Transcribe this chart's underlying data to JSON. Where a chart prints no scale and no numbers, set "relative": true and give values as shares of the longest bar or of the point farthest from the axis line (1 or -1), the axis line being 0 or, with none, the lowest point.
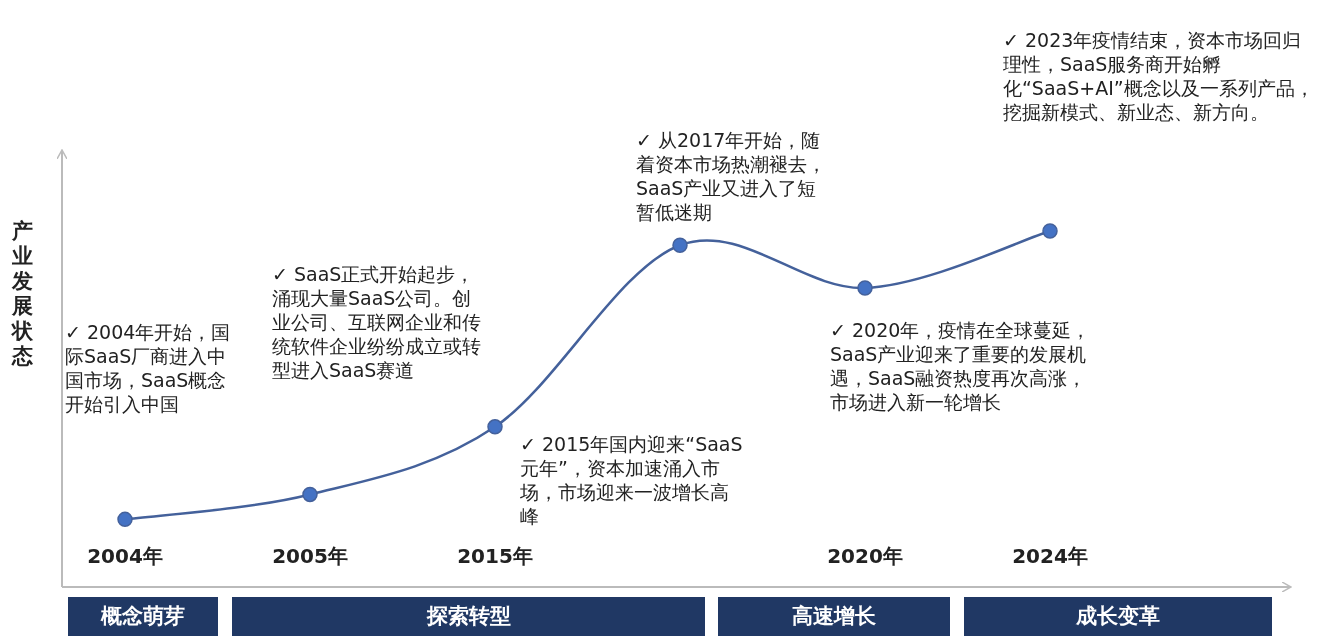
{
  "chart_data": {
    "type": "line",
    "relative": true,
    "ylabel": "产业发展状态",
    "categories": [
      "2004年",
      "2005年",
      "2015年",
      null,
      "2020年",
      "2024年"
    ],
    "series": [
      {
        "color": "#44619b",
        "values": [
          0.19,
          0.26,
          0.45,
          0.96,
          0.84,
          1
        ]
      }
    ],
    "marker": "circle",
    "line_style": "solid",
    "annotations": [
      "✓ 2004年开始，国际SaaS厂商进入中国市场，SaaS概念开始引入中国",
      "✓ SaaS正式开始起步，涌现大量SaaS公司。创业公司、互联网企业和传统软件企业纷纷成立或转型进入SaaS赛道",
      "✓ 2015年国内迎来“SaaS元年”，资本加速涌入市场，市场迎来一波增长高峰",
      "✓ 从2017年开始，随着资本市场热潮褪去，SaaS产业又进入了短暂低迷期",
      "✓ 2020年，疫情在全球蔓延，SaaS产业迎来了重要的发展机遇，SaaS融资热度再次高涨，市场进入新一轮增长",
      "✓ 2023年疫情结束，资本市场回归理性，SaaS服务商开始孵化“SaaS+AI”概念以及一系列产品，挖掘新模式、新业态、新方向。",
      "概念萌芽",
      "探索转型",
      "高速增长",
      "成长变革"
    ]
  }
}
